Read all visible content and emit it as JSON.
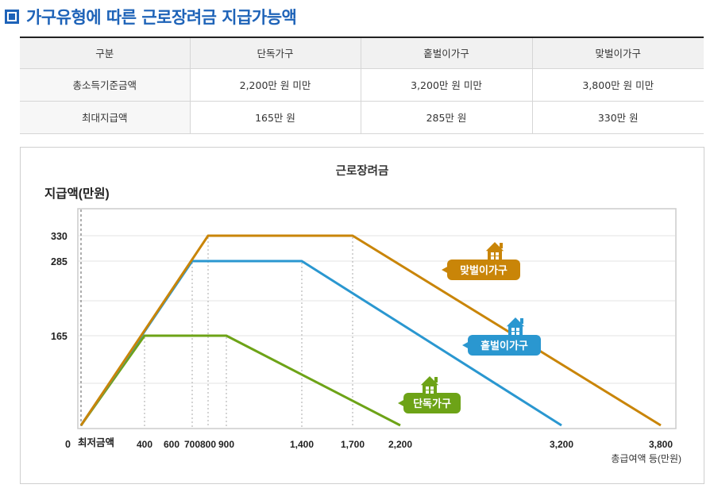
{
  "header": {
    "title": "가구유형에 따른 근로장려금 지급가능액"
  },
  "table": {
    "columns": [
      "구분",
      "단독가구",
      "홑벌이가구",
      "맞벌이가구"
    ],
    "rows": [
      [
        "총소득기준금액",
        "2,200만 원 미만",
        "3,200만 원 미만",
        "3,800만 원 미만"
      ],
      [
        "최대지급액",
        "165만 원",
        "285만 원",
        "330만 원"
      ]
    ]
  },
  "chart_data": {
    "type": "line",
    "title": "근로장려금",
    "ylabel": "지급액(만원)",
    "xlabel": "총급여액 등(만원)",
    "x_origin_label": "최저금액",
    "y_ticks": [
      {
        "value": 0,
        "label": "0"
      },
      {
        "value": 165,
        "label": "165"
      },
      {
        "value": 285,
        "label": "285"
      },
      {
        "value": 330,
        "label": "330"
      }
    ],
    "x_ticks": [
      {
        "value": 400,
        "label": "400"
      },
      {
        "value": 600,
        "label": "600"
      },
      {
        "value": 700,
        "label": "700"
      },
      {
        "value": 800,
        "label": "800"
      },
      {
        "value": 900,
        "label": "900"
      },
      {
        "value": 1400,
        "label": "1,400"
      },
      {
        "value": 1700,
        "label": "1,700"
      },
      {
        "value": 2200,
        "label": "2,200"
      },
      {
        "value": 3200,
        "label": "3,200"
      },
      {
        "value": 3800,
        "label": "3,800"
      }
    ],
    "grid": true,
    "series": [
      {
        "name": "단독가구",
        "color": "#6da317",
        "x": [
          0,
          400,
          900,
          2200
        ],
        "y": [
          0,
          165,
          165,
          0
        ]
      },
      {
        "name": "홑벌이가구",
        "color": "#2a97d0",
        "x": [
          0,
          700,
          1400,
          3200
        ],
        "y": [
          0,
          285,
          285,
          0
        ]
      },
      {
        "name": "맞벌이가구",
        "color": "#c98508",
        "x": [
          0,
          800,
          1700,
          3800
        ],
        "y": [
          0,
          330,
          330,
          0
        ]
      }
    ]
  },
  "colors": {
    "accent": "#1e63b8",
    "plot_border": "#cccccc",
    "grid": "#e3e3e3"
  },
  "icons": {
    "series_marker": "house-icon",
    "header_marker": "square-bullet-icon"
  }
}
